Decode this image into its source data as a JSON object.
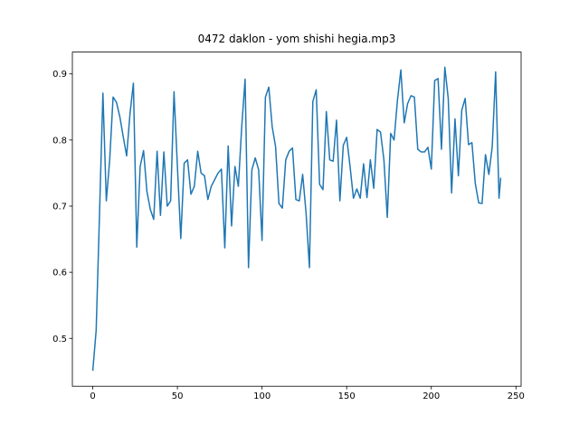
{
  "chart_data": {
    "type": "line",
    "title": "0472 daklon - yom shishi hegia.mp3",
    "x": [
      0,
      2,
      4,
      6,
      8,
      10,
      12,
      14,
      16,
      18,
      20,
      22,
      24,
      26,
      28,
      30,
      32,
      34,
      36,
      38,
      40,
      42,
      44,
      46,
      48,
      50,
      52,
      54,
      56,
      58,
      60,
      62,
      64,
      66,
      68,
      70,
      72,
      74,
      76,
      78,
      80,
      82,
      84,
      86,
      88,
      90,
      92,
      94,
      96,
      98,
      100,
      102,
      104,
      106,
      108,
      110,
      112,
      114,
      116,
      118,
      120,
      122,
      124,
      126,
      128,
      130,
      132,
      134,
      136,
      138,
      140,
      142,
      144,
      146,
      148,
      150,
      152,
      154,
      156,
      158,
      160,
      162,
      164,
      166,
      168,
      170,
      172,
      174,
      176,
      178,
      180,
      182,
      184,
      186,
      188,
      190,
      192,
      194,
      196,
      198,
      200,
      202,
      204,
      206,
      208,
      210,
      212,
      214,
      216,
      218,
      220,
      222,
      224,
      226,
      228,
      230,
      232,
      234,
      236,
      238,
      240,
      241
    ],
    "series": [
      {
        "color": "#1f77b4",
        "values": [
          0.451,
          0.512,
          0.69,
          0.871,
          0.708,
          0.77,
          0.865,
          0.857,
          0.835,
          0.805,
          0.776,
          0.84,
          0.886,
          0.638,
          0.76,
          0.784,
          0.722,
          0.695,
          0.68,
          0.783,
          0.686,
          0.782,
          0.7,
          0.708,
          0.873,
          0.76,
          0.651,
          0.765,
          0.77,
          0.718,
          0.73,
          0.783,
          0.75,
          0.746,
          0.71,
          0.73,
          0.74,
          0.75,
          0.756,
          0.637,
          0.791,
          0.67,
          0.76,
          0.73,
          0.82,
          0.892,
          0.607,
          0.755,
          0.773,
          0.755,
          0.648,
          0.865,
          0.88,
          0.82,
          0.79,
          0.704,
          0.697,
          0.77,
          0.783,
          0.788,
          0.71,
          0.708,
          0.748,
          0.69,
          0.607,
          0.858,
          0.876,
          0.733,
          0.725,
          0.843,
          0.77,
          0.768,
          0.83,
          0.708,
          0.792,
          0.804,
          0.76,
          0.712,
          0.726,
          0.712,
          0.764,
          0.713,
          0.77,
          0.727,
          0.816,
          0.812,
          0.77,
          0.683,
          0.81,
          0.8,
          0.86,
          0.906,
          0.826,
          0.855,
          0.867,
          0.865,
          0.786,
          0.782,
          0.782,
          0.789,
          0.756,
          0.89,
          0.893,
          0.786,
          0.91,
          0.863,
          0.72,
          0.832,
          0.746,
          0.845,
          0.863,
          0.793,
          0.796,
          0.734,
          0.705,
          0.704,
          0.778,
          0.748,
          0.79,
          0.903,
          0.712,
          0.743
        ]
      }
    ],
    "xlim": [
      -12.05,
      253.05
    ],
    "ylim": [
      0.4276,
      0.933
    ],
    "xticks": [
      0,
      50,
      100,
      150,
      200,
      250
    ],
    "yticks": [
      0.5,
      0.6,
      0.7,
      0.8,
      0.9
    ]
  }
}
